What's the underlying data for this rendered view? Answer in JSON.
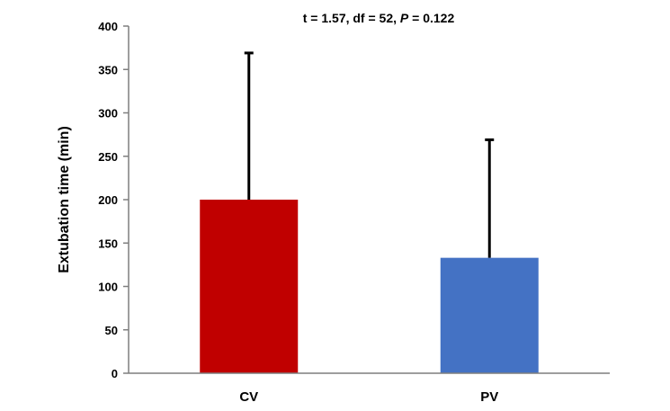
{
  "chart_data": {
    "type": "bar",
    "categories": [
      "CV",
      "PV"
    ],
    "values": [
      200,
      133
    ],
    "error_bars_upper": [
      369,
      269
    ],
    "colors": [
      "#c00000",
      "#4472c4"
    ],
    "ylabel": "Extubation time (min)",
    "xlabel": "",
    "ylim": [
      0,
      400
    ],
    "yticks": [
      0,
      50,
      100,
      150,
      200,
      250,
      300,
      350,
      400
    ],
    "grid": false,
    "legend": "none",
    "annotation": {
      "prefix": "t = 1.57, df = 52, ",
      "italic": "P",
      "suffix": " = 0.122"
    }
  }
}
